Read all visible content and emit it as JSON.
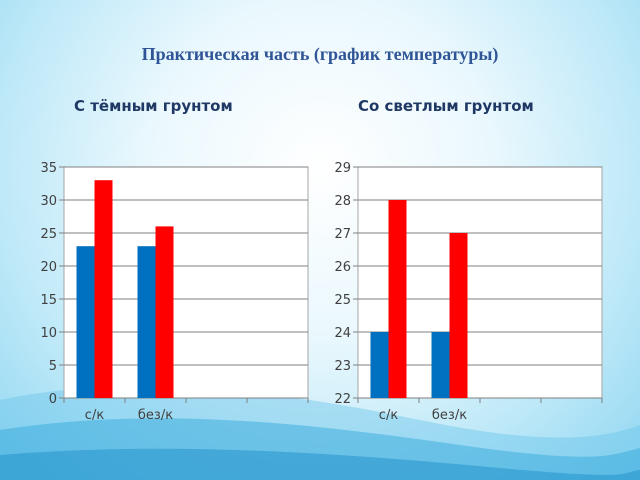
{
  "slide_title": "Практическая часть (график температуры)",
  "colors": {
    "series1": "#0070c0",
    "series2": "#ff0000",
    "title": "#2f5597",
    "plot_border": "#a6a6a6",
    "grid": "#808080"
  },
  "chart_data": [
    {
      "type": "bar",
      "title": "С тёмным грунтом",
      "categories": [
        "с/к",
        "без/к",
        "",
        ""
      ],
      "series": [
        {
          "values": [
            23,
            23,
            null,
            null
          ],
          "color": "#0070c0"
        },
        {
          "values": [
            33,
            26,
            null,
            null
          ],
          "color": "#ff0000"
        }
      ],
      "ylim": [
        0,
        35
      ],
      "yticks": [
        0,
        5,
        10,
        15,
        20,
        25,
        30,
        35
      ],
      "grid": true,
      "legend": "none"
    },
    {
      "type": "bar",
      "title": "Со светлым грунтом",
      "categories": [
        "с/к",
        "без/к",
        "",
        ""
      ],
      "series": [
        {
          "values": [
            24,
            24,
            null,
            null
          ],
          "color": "#0070c0"
        },
        {
          "values": [
            28,
            27,
            null,
            null
          ],
          "color": "#ff0000"
        }
      ],
      "ylim": [
        22,
        29
      ],
      "yticks": [
        22,
        23,
        24,
        25,
        26,
        27,
        28,
        29
      ],
      "grid": true,
      "legend": "none"
    }
  ]
}
